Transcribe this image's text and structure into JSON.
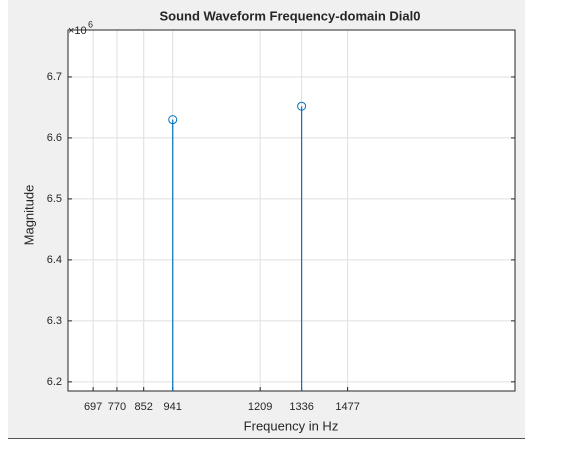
{
  "chart_data": {
    "type": "stem",
    "title": "Sound Waveform  Frequency-domain Dial0",
    "xlabel": "Frequency in Hz",
    "ylabel": "Magnitude",
    "y_multiplier": "×10",
    "y_multiplier_exponent": "6",
    "x": [
      941,
      1336
    ],
    "values": [
      6.63,
      6.652
    ],
    "color": "#0072bd",
    "xlim": [
      620,
      1990
    ],
    "xticks": [
      697,
      770,
      852,
      941,
      1209,
      1336,
      1477
    ],
    "ylim": [
      6.185,
      6.777
    ],
    "yticks": [
      6.2,
      6.3,
      6.4,
      6.5,
      6.6,
      6.7
    ],
    "grid": true
  }
}
